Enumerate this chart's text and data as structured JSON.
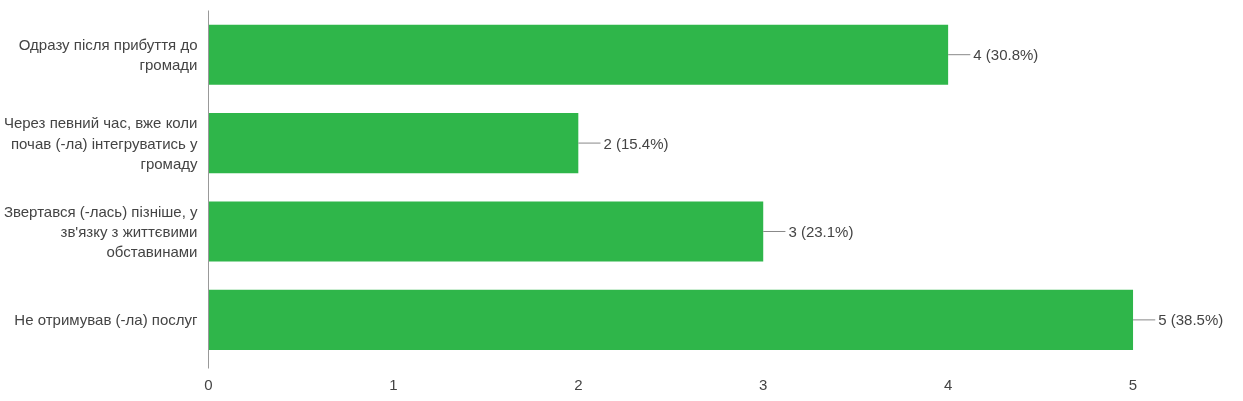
{
  "chart_data": {
    "type": "bar",
    "orientation": "horizontal",
    "categories": [
      "Одразу після прибуття до громади",
      "Через певний час, вже коли почав (-ла) інтегруватись у громаду",
      "Звертався (-лась) пізніше, у зв'язку з життєвими обставинами",
      "Не отримував (-ла) послуг"
    ],
    "values": [
      4,
      2,
      3,
      5
    ],
    "value_labels": [
      "4 (30.8%)",
      "2 (15.4%)",
      "3 (23.1%)",
      "5 (38.5%)"
    ],
    "color": "#2fb64a",
    "xlim": [
      0,
      5
    ],
    "xticks": [
      0,
      1,
      2,
      3,
      4,
      5
    ],
    "grid": false
  }
}
